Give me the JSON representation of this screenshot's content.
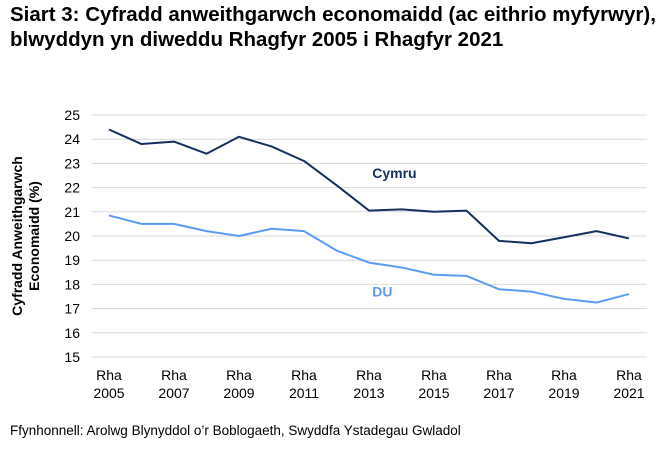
{
  "chart_data": {
    "type": "line",
    "title": "Siart 3: Cyfradd anweithgarwch economaidd (ac eithrio myfyrwyr), blwyddyn yn diweddu Rhagfyr 2005 i Rhagfyr 2021",
    "ylabel": "Cyfradd Anweithgarwch Economaidd (%)",
    "xlabel": "",
    "ylim": [
      15,
      25
    ],
    "yticks": [
      15,
      16,
      17,
      18,
      19,
      20,
      21,
      22,
      23,
      24,
      25
    ],
    "grid": true,
    "x": [
      2005,
      2006,
      2007,
      2008,
      2009,
      2010,
      2011,
      2012,
      2013,
      2014,
      2015,
      2016,
      2017,
      2018,
      2019,
      2020,
      2021
    ],
    "xtick_labels": [
      {
        "x": 2005,
        "line1": "Rha",
        "line2": "2005"
      },
      {
        "x": 2007,
        "line1": "Rha",
        "line2": "2007"
      },
      {
        "x": 2009,
        "line1": "Rha",
        "line2": "2009"
      },
      {
        "x": 2011,
        "line1": "Rha",
        "line2": "2011"
      },
      {
        "x": 2013,
        "line1": "Rha",
        "line2": "2013"
      },
      {
        "x": 2015,
        "line1": "Rha",
        "line2": "2015"
      },
      {
        "x": 2017,
        "line1": "Rha",
        "line2": "2017"
      },
      {
        "x": 2019,
        "line1": "Rha",
        "line2": "2019"
      },
      {
        "x": 2021,
        "line1": "Rha",
        "line2": "2021"
      }
    ],
    "series": [
      {
        "name": "Cymru",
        "color": "#13305e",
        "label_at": {
          "x": 2013.1,
          "y": 22.4
        },
        "values": [
          24.4,
          23.8,
          23.9,
          23.4,
          24.1,
          23.7,
          23.1,
          22.1,
          21.05,
          21.1,
          21.0,
          21.05,
          19.8,
          19.7,
          19.95,
          20.2,
          19.9
        ]
      },
      {
        "name": "DU",
        "color": "#5b9cf2",
        "label_at": {
          "x": 2013.1,
          "y": 17.5
        },
        "values": [
          20.85,
          20.5,
          20.5,
          20.2,
          20.0,
          20.3,
          20.2,
          19.4,
          18.9,
          18.7,
          18.4,
          18.35,
          17.8,
          17.7,
          17.4,
          17.25,
          17.6
        ]
      }
    ]
  },
  "source": "Ffynhonnell: Arolwg Blynyddol o’r Boblogaeth, Swyddfa Ystadegau Gwladol"
}
